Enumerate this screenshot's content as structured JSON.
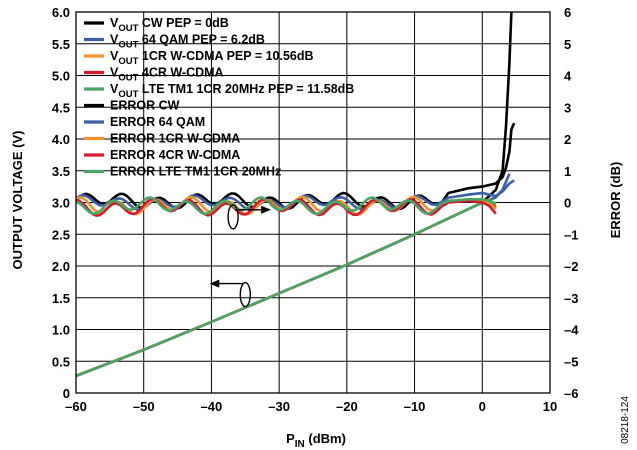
{
  "chart_data": {
    "type": "line",
    "xlabel": "P",
    "xlabel_sub": "IN",
    "xlabel_unit": " (dBm)",
    "ylabel": "OUTPUT VOLTAGE (V)",
    "y2label": "ERROR (dB)",
    "xlim": [
      -60,
      10
    ],
    "ylim": [
      0,
      6
    ],
    "y2lim": [
      -6,
      6
    ],
    "xticks": [
      -60,
      -50,
      -40,
      -30,
      -20,
      -10,
      0,
      10
    ],
    "xtick_labels": [
      "–60",
      "–50",
      "–40",
      "–30",
      "–20",
      "–10",
      "0",
      "10"
    ],
    "yticks": [
      0,
      0.5,
      1.0,
      1.5,
      2.0,
      2.5,
      3.0,
      3.5,
      4.0,
      4.5,
      5.0,
      5.5,
      6.0
    ],
    "ytick_labels": [
      "0",
      "0.5",
      "1.0",
      "1.5",
      "2.0",
      "2.5",
      "3.0",
      "3.5",
      "4.0",
      "4.5",
      "5.0",
      "5.5",
      "6.0"
    ],
    "y2ticks": [
      -6,
      -5,
      -4,
      -3,
      -2,
      -1,
      0,
      1,
      2,
      3,
      4,
      5,
      6
    ],
    "y2tick_labels": [
      "–6",
      "–5",
      "–4",
      "–3",
      "–2",
      "–1",
      "0",
      "1",
      "2",
      "3",
      "4",
      "5",
      "6"
    ],
    "grid": true,
    "legend_position": "top-left",
    "figure_id": "08218-124",
    "legend": [
      {
        "main": "V",
        "sub": "OUT",
        "rest": " CW PEP = 0dB",
        "color": "#000000"
      },
      {
        "main": "V",
        "sub": "OUT",
        "rest": " 64 QAM PEP = 6.2dB",
        "color": "#3b5ea8"
      },
      {
        "main": "V",
        "sub": "OUT",
        "rest": " 1CR W-CDMA PEP = 10.56dB",
        "color": "#f5922a"
      },
      {
        "main": "V",
        "sub": "OUT",
        "rest": " 4CR W-CDMA",
        "color": "#d7192e"
      },
      {
        "main": "V",
        "sub": "OUT",
        "rest": " LTE TM1 1CR 20MHz PEP = 11.58dB",
        "color": "#4aa564"
      },
      {
        "main": "ERROR CW",
        "sub": "",
        "rest": "",
        "color": "#000000"
      },
      {
        "main": "ERROR 64 QAM",
        "sub": "",
        "rest": "",
        "color": "#3b5ea8"
      },
      {
        "main": "ERROR 1CR W-CDMA",
        "sub": "",
        "rest": "",
        "color": "#f5922a"
      },
      {
        "main": "ERROR 4CR W-CDMA",
        "sub": "",
        "rest": "",
        "color": "#d7192e"
      },
      {
        "main": "ERROR LTE TM1 1CR 20MHz",
        "sub": "",
        "rest": "",
        "color": "#4aa564"
      }
    ],
    "vout_series": [
      {
        "name": "VOUT CW PEP = 0dB",
        "color": "#000000",
        "axis": "left",
        "x": [
          -60,
          -50,
          -40,
          -30,
          -20,
          -10,
          0,
          2,
          3,
          3.5,
          4,
          4.3
        ],
        "y": [
          0.27,
          0.68,
          1.12,
          1.57,
          2.02,
          2.5,
          3.0,
          3.2,
          3.5,
          4.2,
          5.2,
          6.0
        ]
      },
      {
        "name": "VOUT 64 QAM PEP = 6.2dB",
        "color": "#3b5ea8",
        "axis": "left",
        "x": [
          -60,
          -50,
          -40,
          -30,
          -20,
          -10,
          0,
          2,
          3,
          4
        ],
        "y": [
          0.27,
          0.68,
          1.12,
          1.57,
          2.02,
          2.5,
          3.0,
          3.08,
          3.2,
          3.45
        ]
      },
      {
        "name": "VOUT 1CR W-CDMA PEP = 10.56dB",
        "color": "#f5922a",
        "axis": "left",
        "x": [
          -60,
          -50,
          -40,
          -30,
          -20,
          -10,
          0,
          1,
          2
        ],
        "y": [
          0.27,
          0.68,
          1.12,
          1.57,
          2.02,
          2.5,
          3.0,
          3.05,
          2.95
        ]
      },
      {
        "name": "VOUT 4CR W-CDMA",
        "color": "#d7192e",
        "axis": "left",
        "x": [
          -60,
          -50,
          -40,
          -30,
          -20,
          -10,
          0,
          1,
          2
        ],
        "y": [
          0.27,
          0.68,
          1.12,
          1.57,
          2.02,
          2.5,
          3.0,
          3.03,
          2.92
        ]
      },
      {
        "name": "VOUT LTE TM1 1CR 20MHz PEP = 11.58dB",
        "color": "#4aa564",
        "axis": "left",
        "x": [
          -60,
          -50,
          -40,
          -30,
          -20,
          -10,
          0,
          1,
          2
        ],
        "y": [
          0.27,
          0.68,
          1.12,
          1.57,
          2.02,
          2.5,
          3.0,
          3.04,
          2.98
        ]
      }
    ],
    "error_series": [
      {
        "name": "ERROR CW",
        "color": "#000000",
        "axis": "right",
        "base": 0.05,
        "ripple": 0.18,
        "tail_x": [
          -5,
          -2,
          0,
          2,
          3,
          3.5,
          4,
          4.3,
          4.7
        ],
        "tail_y": [
          0.3,
          0.45,
          0.5,
          0.6,
          0.8,
          1.1,
          1.6,
          2.3,
          2.5
        ]
      },
      {
        "name": "ERROR 64 QAM",
        "color": "#3b5ea8",
        "axis": "right",
        "base": 0.0,
        "ripple": 0.15,
        "tail_x": [
          -5,
          -2,
          0,
          2,
          3,
          4,
          4.7
        ],
        "tail_y": [
          0.15,
          0.25,
          0.3,
          0.2,
          0.35,
          0.6,
          0.7
        ]
      },
      {
        "name": "ERROR 1CR W-CDMA",
        "color": "#f5922a",
        "axis": "right",
        "base": -0.1,
        "ripple": 0.2,
        "tail_x": [
          -5,
          -2,
          0,
          1,
          2
        ],
        "tail_y": [
          0.05,
          0.1,
          0.05,
          0.0,
          -0.2
        ]
      },
      {
        "name": "ERROR 4CR W-CDMA",
        "color": "#d7192e",
        "axis": "right",
        "base": -0.15,
        "ripple": 0.2,
        "tail_x": [
          -5,
          -2,
          0,
          1,
          2
        ],
        "tail_y": [
          0.0,
          0.05,
          0.0,
          -0.1,
          -0.35
        ]
      },
      {
        "name": "ERROR LTE TM1 1CR 20MHz",
        "color": "#4aa564",
        "axis": "right",
        "base": -0.1,
        "ripple": 0.18,
        "tail_x": [
          -5,
          -2,
          0,
          1,
          2
        ],
        "tail_y": [
          0.05,
          0.1,
          0.1,
          0.05,
          -0.05
        ]
      }
    ]
  }
}
